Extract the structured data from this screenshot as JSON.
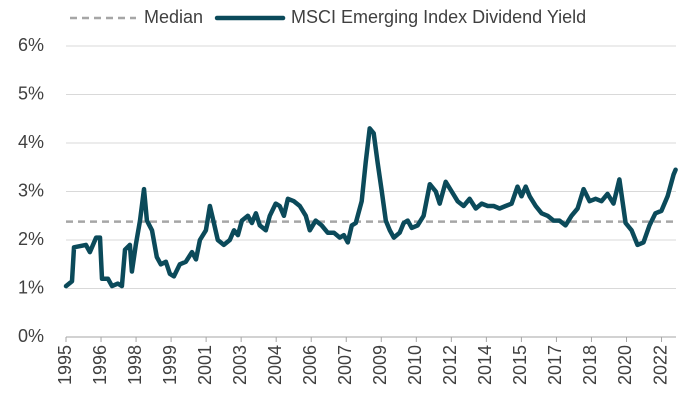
{
  "chart_data": {
    "type": "line",
    "series": [
      {
        "name": "MSCI Emerging Index Dividend Yield",
        "color": "#0b4a5a",
        "x": [
          1995.1,
          1995.37,
          1995.46,
          1996.0,
          1996.18,
          1996.46,
          1996.64,
          1996.73,
          1997.0,
          1997.18,
          1997.45,
          1997.63,
          1997.77,
          1997.99,
          1998.08,
          1998.26,
          1998.45,
          1998.63,
          1998.76,
          1998.99,
          1999.21,
          1999.39,
          1999.62,
          1999.8,
          1999.98,
          2000.25,
          2000.52,
          2000.8,
          2000.98,
          2001.16,
          2001.43,
          2001.61,
          2001.79,
          2001.97,
          2002.24,
          2002.51,
          2002.7,
          2002.88,
          2003.06,
          2003.33,
          2003.51,
          2003.69,
          2003.87,
          2004.14,
          2004.32,
          2004.59,
          2004.77,
          2004.96,
          2005.14,
          2005.41,
          2005.68,
          2005.95,
          2006.13,
          2006.4,
          2006.67,
          2006.94,
          2007.22,
          2007.49,
          2007.67,
          2007.85,
          2008.03,
          2008.21,
          2008.48,
          2008.66,
          2008.84,
          2009.02,
          2009.2,
          2009.39,
          2009.57,
          2009.75,
          2009.93,
          2010.2,
          2010.38,
          2010.56,
          2010.74,
          2011.01,
          2011.28,
          2011.56,
          2011.83,
          2012.01,
          2012.28,
          2012.55,
          2012.82,
          2013.09,
          2013.36,
          2013.64,
          2013.91,
          2014.18,
          2014.45,
          2014.72,
          2014.99,
          2015.26,
          2015.53,
          2015.71,
          2015.9,
          2016.08,
          2016.35,
          2016.62,
          2016.89,
          2017.16,
          2017.43,
          2017.7,
          2017.97,
          2018.25,
          2018.52,
          2018.79,
          2019.06,
          2019.33,
          2019.6,
          2019.87,
          2020.14,
          2020.42,
          2020.69,
          2020.96,
          2021.23,
          2021.5,
          2021.77,
          2022.04,
          2022.32,
          2022.59,
          2022.68
        ],
        "values": [
          1.05,
          1.15,
          1.85,
          1.9,
          1.75,
          2.05,
          2.05,
          1.2,
          1.2,
          1.05,
          1.1,
          1.05,
          1.8,
          1.9,
          1.35,
          1.9,
          2.4,
          3.05,
          2.4,
          2.2,
          1.65,
          1.5,
          1.55,
          1.3,
          1.25,
          1.5,
          1.55,
          1.75,
          1.6,
          2.0,
          2.2,
          2.7,
          2.35,
          2.0,
          1.9,
          2.0,
          2.2,
          2.1,
          2.4,
          2.5,
          2.35,
          2.55,
          2.3,
          2.2,
          2.5,
          2.75,
          2.7,
          2.5,
          2.85,
          2.8,
          2.7,
          2.5,
          2.2,
          2.4,
          2.3,
          2.15,
          2.15,
          2.05,
          2.1,
          1.95,
          2.3,
          2.35,
          2.8,
          3.6,
          4.3,
          4.2,
          3.6,
          3.0,
          2.4,
          2.2,
          2.05,
          2.15,
          2.35,
          2.4,
          2.25,
          2.3,
          2.5,
          3.15,
          3.0,
          2.75,
          3.2,
          3.0,
          2.8,
          2.7,
          2.85,
          2.65,
          2.75,
          2.7,
          2.7,
          2.65,
          2.7,
          2.75,
          3.1,
          2.9,
          3.1,
          2.9,
          2.7,
          2.55,
          2.5,
          2.4,
          2.4,
          2.3,
          2.5,
          2.65,
          3.05,
          2.8,
          2.85,
          2.8,
          2.95,
          2.75,
          3.25,
          2.35,
          2.2,
          1.9,
          1.95,
          2.3,
          2.55,
          2.6,
          2.9,
          3.35,
          3.45
        ]
      }
    ],
    "reference_lines": [
      {
        "name": "Median",
        "value": 2.38,
        "color": "#a6a6a6"
      }
    ],
    "xlim": [
      1995.1,
      2022.7
    ],
    "xticks": [
      {
        "value": 1995.1,
        "label": "1995"
      },
      {
        "value": 1996.685,
        "label": "1996"
      },
      {
        "value": 1998.27,
        "label": "1998"
      },
      {
        "value": 1999.855,
        "label": "1999"
      },
      {
        "value": 2001.44,
        "label": "2001"
      },
      {
        "value": 2003.025,
        "label": "2003"
      },
      {
        "value": 2004.61,
        "label": "2004"
      },
      {
        "value": 2006.195,
        "label": "2006"
      },
      {
        "value": 2007.78,
        "label": "2007"
      },
      {
        "value": 2009.365,
        "label": "2009"
      },
      {
        "value": 2010.95,
        "label": "2010"
      },
      {
        "value": 2012.535,
        "label": "2012"
      },
      {
        "value": 2014.12,
        "label": "2014"
      },
      {
        "value": 2015.705,
        "label": "2015"
      },
      {
        "value": 2017.29,
        "label": "2017"
      },
      {
        "value": 2018.875,
        "label": "2018"
      },
      {
        "value": 2020.46,
        "label": "2020"
      },
      {
        "value": 2022.045,
        "label": "2022"
      }
    ],
    "ylim": [
      0,
      6
    ],
    "yticks": [
      {
        "value": 0,
        "label": "0%"
      },
      {
        "value": 1,
        "label": "1%"
      },
      {
        "value": 2,
        "label": "2%"
      },
      {
        "value": 3,
        "label": "3%"
      },
      {
        "value": 4,
        "label": "4%"
      },
      {
        "value": 5,
        "label": "5%"
      },
      {
        "value": 6,
        "label": "6%"
      }
    ],
    "grid": true
  }
}
